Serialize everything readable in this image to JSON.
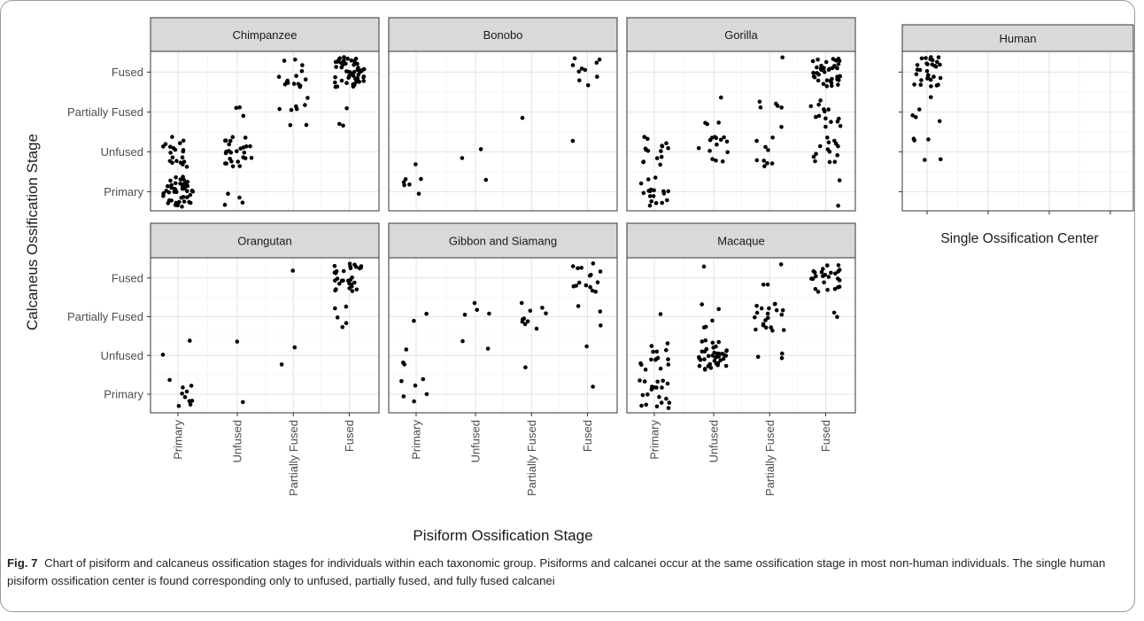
{
  "figure": {
    "caption_label": "Fig. 7",
    "caption_text": "Chart of pisiform and calcaneus ossification stages for individuals within each taxonomic group. Pisiforms and calcanei occur at the same ossification stage in most non-human individuals. The single human pisiform ossification center is found corresponding only to unfused, partially fused, and fully fused calcanei"
  },
  "chart_data": {
    "type": "scatter",
    "xlabel": "Pisiform Ossification Stage",
    "ylabel": "Calcaneus Ossification Stage",
    "x_categories": [
      "Primary",
      "Unfused",
      "Partially Fused",
      "Fused"
    ],
    "y_categories": [
      "Primary",
      "Unfused",
      "Partially Fused",
      "Fused"
    ],
    "human_xlabel": "Single Ossification Center",
    "grid": true,
    "theme": "bw",
    "point_color": "#000000",
    "strip_color": "#d9d9d9",
    "panels": [
      {
        "name": "Chimpanzee",
        "counts": [
          [
            48,
            4,
            0,
            0
          ],
          [
            20,
            26,
            0,
            0
          ],
          [
            0,
            3,
            8,
            3
          ],
          [
            0,
            0,
            15,
            52
          ]
        ]
      },
      {
        "name": "Bonobo",
        "counts": [
          [
            6,
            1,
            0,
            0
          ],
          [
            1,
            2,
            0,
            1
          ],
          [
            0,
            0,
            1,
            0
          ],
          [
            0,
            0,
            0,
            10
          ]
        ]
      },
      {
        "name": "Gorilla",
        "counts": [
          [
            18,
            0,
            0,
            2
          ],
          [
            15,
            14,
            9,
            14
          ],
          [
            0,
            4,
            6,
            14
          ],
          [
            0,
            0,
            1,
            40
          ]
        ]
      },
      {
        "name": "Orangutan",
        "counts": [
          [
            10,
            1,
            0,
            0
          ],
          [
            2,
            1,
            2,
            0
          ],
          [
            0,
            0,
            0,
            5
          ],
          [
            0,
            0,
            1,
            30
          ]
        ]
      },
      {
        "name": "Gibbon and Siamang",
        "counts": [
          [
            6,
            0,
            0,
            1
          ],
          [
            3,
            2,
            1,
            1
          ],
          [
            2,
            4,
            10,
            3
          ],
          [
            0,
            0,
            0,
            15
          ]
        ]
      },
      {
        "name": "Macaque",
        "counts": [
          [
            20,
            0,
            0,
            0
          ],
          [
            15,
            40,
            3,
            0
          ],
          [
            1,
            5,
            20,
            2
          ],
          [
            0,
            1,
            3,
            25
          ]
        ]
      },
      {
        "name": "Human",
        "counts": [
          [
            0
          ],
          [
            5
          ],
          [
            5
          ],
          [
            30
          ]
        ]
      }
    ]
  }
}
